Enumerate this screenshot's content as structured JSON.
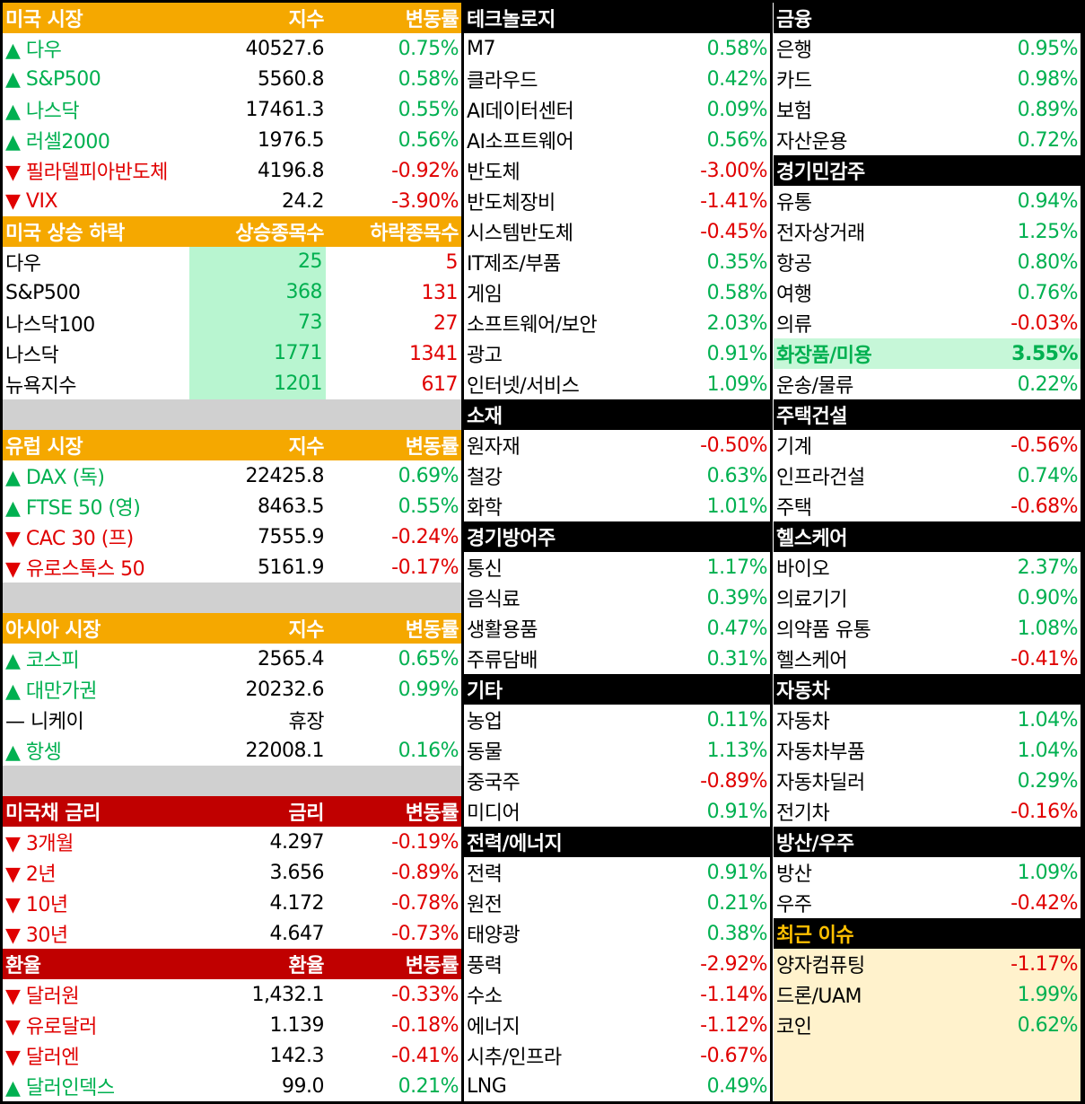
{
  "us_market": {
    "title": "미국 시장",
    "col_value": "지수",
    "col_change": "변동률",
    "rows": [
      {
        "name": "▲ 다우",
        "value": "40527.6",
        "change": "0.75%"
      },
      {
        "name": "▲ S&P500",
        "value": "5560.8",
        "change": "0.58%"
      },
      {
        "name": "▲ 나스닥",
        "value": "17461.3",
        "change": "0.55%"
      },
      {
        "name": "▲ 러셀2000",
        "value": "1976.5",
        "change": "0.56%"
      },
      {
        "name": "▼ 필라델피아반도체",
        "value": "4196.8",
        "change": "-0.92%"
      },
      {
        "name": "▼ VIX",
        "value": "24.2",
        "change": "-3.90%"
      }
    ]
  },
  "advance_decline": {
    "title": "미국 상승 하락",
    "col_up": "상승종목수",
    "col_down": "하락종목수",
    "rows": [
      {
        "name": "다우",
        "up": "25",
        "down": "5"
      },
      {
        "name": "S&P500",
        "up": "368",
        "down": "131"
      },
      {
        "name": "나스닥100",
        "up": "73",
        "down": "27"
      },
      {
        "name": "나스닥",
        "up": "1771",
        "down": "1341"
      },
      {
        "name": "뉴욕지수",
        "up": "1201",
        "down": "617"
      }
    ]
  },
  "eu_market": {
    "title": "유럽 시장",
    "col_value": "지수",
    "col_change": "변동률",
    "rows": [
      {
        "name": "▲ DAX (독)",
        "value": "22425.8",
        "change": "0.69%"
      },
      {
        "name": "▲ FTSE 50 (영)",
        "value": "8463.5",
        "change": "0.55%"
      },
      {
        "name": "▼ CAC 30 (프)",
        "value": "7555.9",
        "change": "-0.24%"
      },
      {
        "name": "▼ 유로스톡스 50",
        "value": "5161.9",
        "change": "-0.17%"
      }
    ]
  },
  "asia_market": {
    "title": "아시아 시장",
    "col_value": "지수",
    "col_change": "변동률",
    "rows": [
      {
        "name": "▲ 코스피",
        "value": "2565.4",
        "change": "0.65%"
      },
      {
        "name": "▲ 대만가권",
        "value": "20232.6",
        "change": "0.99%"
      },
      {
        "name": "— 니케이",
        "value": "휴장",
        "change": ""
      },
      {
        "name": "▲ 항셍",
        "value": "22008.1",
        "change": "0.16%"
      }
    ]
  },
  "treasury": {
    "title": "미국채 금리",
    "col_value": "금리",
    "col_change": "변동률",
    "rows": [
      {
        "name": "▼ 3개월",
        "value": "4.297",
        "change": "-0.19%"
      },
      {
        "name": "▼ 2년",
        "value": "3.656",
        "change": "-0.89%"
      },
      {
        "name": "▼ 10년",
        "value": "4.172",
        "change": "-0.78%"
      },
      {
        "name": "▼ 30년",
        "value": "4.647",
        "change": "-0.73%"
      }
    ]
  },
  "fx": {
    "title": "환율",
    "col_value": "환율",
    "col_change": "변동률",
    "rows": [
      {
        "name": "▼ 달러원",
        "value": "1,432.1",
        "change": "-0.33%"
      },
      {
        "name": "▼ 유로달러",
        "value": "1.139",
        "change": "-0.18%"
      },
      {
        "name": "▼ 달러엔",
        "value": "142.3",
        "change": "-0.41%"
      },
      {
        "name": "▲ 달러인덱스",
        "value": "99.0",
        "change": "0.21%"
      }
    ]
  },
  "col_b": [
    {
      "title": "테크놀로지",
      "rows": [
        {
          "name": "M7",
          "change": "0.58%"
        },
        {
          "name": "클라우드",
          "change": "0.42%"
        },
        {
          "name": "AI데이터센터",
          "change": "0.09%"
        },
        {
          "name": "AI소프트웨어",
          "change": "0.56%"
        },
        {
          "name": "반도체",
          "change": "-3.00%"
        },
        {
          "name": "반도체장비",
          "change": "-1.41%"
        },
        {
          "name": "시스템반도체",
          "change": "-0.45%"
        },
        {
          "name": "IT제조/부품",
          "change": "0.35%"
        },
        {
          "name": "게임",
          "change": "0.58%"
        },
        {
          "name": "소프트웨어/보안",
          "change": "2.03%"
        },
        {
          "name": "광고",
          "change": "0.91%"
        },
        {
          "name": "인터넷/서비스",
          "change": "1.09%"
        }
      ]
    },
    {
      "title": "소재",
      "rows": [
        {
          "name": "원자재",
          "change": "-0.50%"
        },
        {
          "name": "철강",
          "change": "0.63%"
        },
        {
          "name": "화학",
          "change": "1.01%"
        }
      ]
    },
    {
      "title": "경기방어주",
      "rows": [
        {
          "name": "통신",
          "change": "1.17%"
        },
        {
          "name": "음식료",
          "change": "0.39%"
        },
        {
          "name": "생활용품",
          "change": "0.47%"
        },
        {
          "name": "주류담배",
          "change": "0.31%"
        }
      ]
    },
    {
      "title": "기타",
      "rows": [
        {
          "name": "농업",
          "change": "0.11%"
        },
        {
          "name": "동물",
          "change": "1.13%"
        },
        {
          "name": "중국주",
          "change": "-0.89%"
        },
        {
          "name": "미디어",
          "change": "0.91%"
        }
      ]
    },
    {
      "title": "전력/에너지",
      "rows": [
        {
          "name": "전력",
          "change": "0.91%"
        },
        {
          "name": "원전",
          "change": "0.21%"
        },
        {
          "name": "태양광",
          "change": "0.38%"
        },
        {
          "name": "풍력",
          "change": "-2.92%"
        },
        {
          "name": "수소",
          "change": "-1.14%"
        },
        {
          "name": "에너지",
          "change": "-1.12%"
        },
        {
          "name": "시추/인프라",
          "change": "-0.67%"
        },
        {
          "name": "LNG",
          "change": "0.49%"
        }
      ]
    }
  ],
  "col_c": [
    {
      "title": "금융",
      "rows": [
        {
          "name": "은행",
          "change": "0.95%"
        },
        {
          "name": "카드",
          "change": "0.98%"
        },
        {
          "name": "보험",
          "change": "0.89%"
        },
        {
          "name": "자산운용",
          "change": "0.72%"
        }
      ]
    },
    {
      "title": "경기민감주",
      "rows": [
        {
          "name": "유통",
          "change": "0.94%"
        },
        {
          "name": "전자상거래",
          "change": "1.25%"
        },
        {
          "name": "항공",
          "change": "0.80%"
        },
        {
          "name": "여행",
          "change": "0.76%"
        },
        {
          "name": "의류",
          "change": "-0.03%"
        },
        {
          "name": "화장품/미용",
          "change": "3.55%"
        },
        {
          "name": "운송/물류",
          "change": "0.22%"
        }
      ]
    },
    {
      "title": "주택건설",
      "rows": [
        {
          "name": "기계",
          "change": "-0.56%"
        },
        {
          "name": "인프라건설",
          "change": "0.74%"
        },
        {
          "name": "주택",
          "change": "-0.68%"
        }
      ]
    },
    {
      "title": "헬스케어",
      "rows": [
        {
          "name": "바이오",
          "change": "2.37%"
        },
        {
          "name": "의료기기",
          "change": "0.90%"
        },
        {
          "name": "의약품 유통",
          "change": "1.08%"
        },
        {
          "name": "헬스케어",
          "change": "-0.41%"
        }
      ]
    },
    {
      "title": "자동차",
      "rows": [
        {
          "name": "자동차",
          "change": "1.04%"
        },
        {
          "name": "자동차부품",
          "change": "1.04%"
        },
        {
          "name": "자동차딜러",
          "change": "0.29%"
        },
        {
          "name": "전기차",
          "change": "-0.16%"
        }
      ]
    },
    {
      "title": "방산/우주",
      "rows": [
        {
          "name": "방산",
          "change": "1.09%"
        },
        {
          "name": "우주",
          "change": "-0.42%"
        }
      ]
    }
  ],
  "recent_issues": {
    "title": "최근 이슈",
    "rows": [
      {
        "name": "양자컴퓨팅",
        "change": "-1.17%"
      },
      {
        "name": "드론/UAM",
        "change": "1.99%"
      },
      {
        "name": "코인",
        "change": "0.62%"
      }
    ]
  },
  "colors": {
    "up": "#00b050",
    "down": "#e00000",
    "header_orange": "#f5a800",
    "header_red": "#c00000",
    "header_black": "#000000",
    "issue_title": "#ffc000",
    "advancer_fill": "#b8f5d0",
    "issue_fill": "#fff2cc"
  }
}
